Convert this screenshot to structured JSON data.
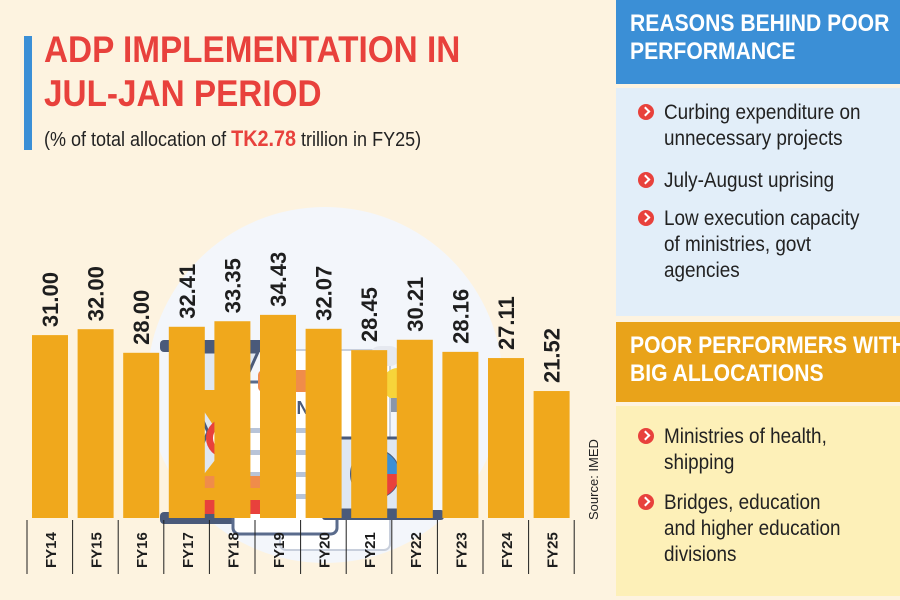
{
  "title_line1": "ADP IMPLEMENTATION IN",
  "title_line2": "JUL-JAN PERIOD",
  "subtitle_pre": "(% of total allocation of ",
  "subtitle_amount": "TK2.78",
  "subtitle_post": " trillion in FY25)",
  "source": "Source: IMED",
  "colors": {
    "bar": "#f0a81c",
    "red": "#e8413c",
    "blue": "#3b8fd6",
    "cream": "#fdf3e0"
  },
  "chart_data": {
    "type": "bar",
    "title": "ADP IMPLEMENTATION IN JUL-JAN PERIOD",
    "ylabel": "% of total allocation",
    "categories": [
      "FY14",
      "FY15",
      "FY16",
      "FY17",
      "FY18",
      "FY19",
      "FY20",
      "FY21",
      "FY22",
      "FY23",
      "FY24",
      "FY25"
    ],
    "values": [
      31.0,
      32.0,
      28.0,
      32.41,
      33.35,
      34.43,
      32.07,
      28.45,
      30.21,
      28.16,
      27.11,
      21.52
    ],
    "labels": [
      "31.00",
      "32.00",
      "28.00",
      "32.41",
      "33.35",
      "34.43",
      "32.07",
      "28.45",
      "30.21",
      "28.16",
      "27.11",
      "21.52"
    ],
    "ylim": [
      0,
      36
    ]
  },
  "reasons": {
    "heading_line1": "REASONS BEHIND POOR",
    "heading_line2": "PERFORMANCE",
    "items": [
      [
        "Curbing expenditure on",
        "unnecessary projects"
      ],
      [
        "July-August uprising"
      ],
      [
        "Low execution capacity",
        "of ministries, govt",
        "agencies"
      ]
    ]
  },
  "performers": {
    "heading_line1": "POOR PERFORMERS WITH",
    "heading_line2": "BIG ALLOCATIONS",
    "items": [
      [
        "Ministries of health,",
        "shipping"
      ],
      [
        "Bridges, education",
        "and higher education",
        "divisions"
      ]
    ]
  }
}
